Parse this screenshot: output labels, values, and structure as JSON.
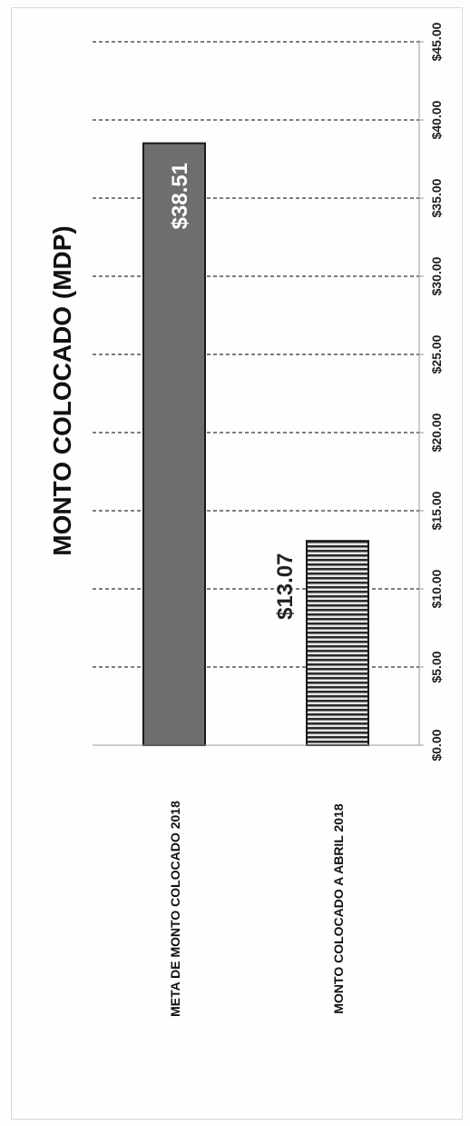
{
  "chart_data": {
    "type": "bar",
    "orientation": "horizontal",
    "title": "MONTO COLOCADO (MDP)",
    "categories": [
      "META DE MONTO COLOCADO 2018",
      "MONTO COLOCADO A ABRIL 2018"
    ],
    "values": [
      38.51,
      13.07
    ],
    "data_labels": [
      "$38.51",
      "$13.07"
    ],
    "xlim": [
      0,
      45
    ],
    "ticks": [
      0,
      5,
      10,
      15,
      20,
      25,
      30,
      35,
      40,
      45
    ],
    "tick_labels": [
      "$0.00",
      "$5.00",
      "$10.00",
      "$15.00",
      "$20.00",
      "$25.00",
      "$30.00",
      "$35.00",
      "$40.00",
      "$45.00"
    ],
    "grid": true,
    "colors": {
      "bar1": "#6e6e6e",
      "bar2": "#8a8a8a",
      "grid": "#333333",
      "label_on_bar": "#ffffff",
      "label_outside": "#222222"
    }
  }
}
